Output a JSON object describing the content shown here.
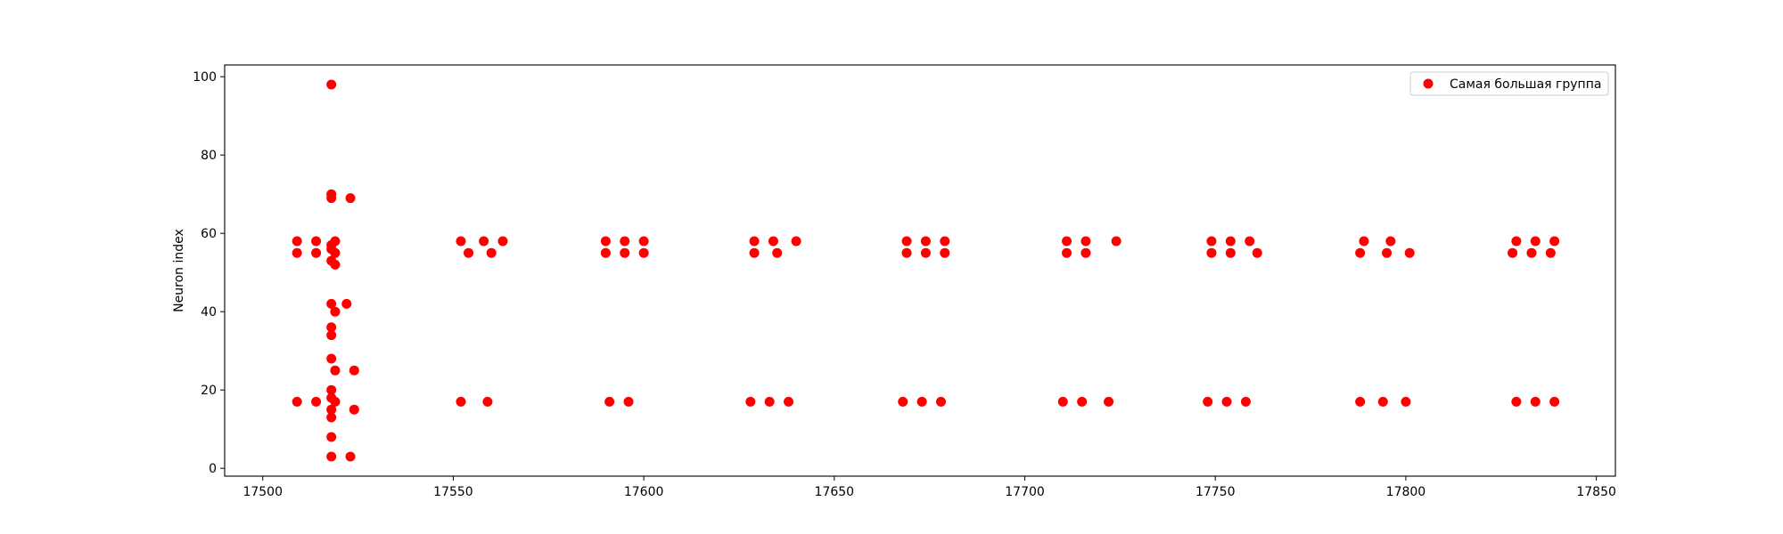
{
  "chart_data": {
    "type": "scatter",
    "title": "",
    "xlabel": "",
    "ylabel": "Neuron index",
    "xlim": [
      17490,
      17855
    ],
    "ylim": [
      -2,
      103
    ],
    "xticks": [
      17500,
      17550,
      17600,
      17650,
      17700,
      17750,
      17800,
      17850
    ],
    "yticks": [
      0,
      20,
      40,
      60,
      80,
      100
    ],
    "grid": false,
    "legend": {
      "position": "top-right"
    },
    "series": [
      {
        "name": "Самая большая группа",
        "color": "#ff0000",
        "marker": "circle",
        "points": [
          [
            17509,
            58
          ],
          [
            17509,
            55
          ],
          [
            17509,
            17
          ],
          [
            17514,
            58
          ],
          [
            17514,
            55
          ],
          [
            17514,
            17
          ],
          [
            17518,
            98
          ],
          [
            17518,
            70
          ],
          [
            17518,
            69
          ],
          [
            17519,
            58
          ],
          [
            17518,
            57
          ],
          [
            17518,
            56
          ],
          [
            17519,
            55
          ],
          [
            17518,
            53
          ],
          [
            17519,
            52
          ],
          [
            17518,
            42
          ],
          [
            17519,
            40
          ],
          [
            17518,
            36
          ],
          [
            17518,
            34
          ],
          [
            17518,
            28
          ],
          [
            17519,
            25
          ],
          [
            17518,
            20
          ],
          [
            17518,
            18
          ],
          [
            17519,
            17
          ],
          [
            17518,
            15
          ],
          [
            17518,
            13
          ],
          [
            17518,
            8
          ],
          [
            17518,
            3
          ],
          [
            17523,
            69
          ],
          [
            17522,
            42
          ],
          [
            17524,
            25
          ],
          [
            17524,
            15
          ],
          [
            17523,
            3
          ],
          [
            17552,
            58
          ],
          [
            17554,
            55
          ],
          [
            17552,
            17
          ],
          [
            17558,
            58
          ],
          [
            17559,
            17
          ],
          [
            17560,
            55
          ],
          [
            17563,
            58
          ],
          [
            17590,
            58
          ],
          [
            17590,
            55
          ],
          [
            17591,
            17
          ],
          [
            17595,
            58
          ],
          [
            17595,
            55
          ],
          [
            17596,
            17
          ],
          [
            17600,
            58
          ],
          [
            17600,
            55
          ],
          [
            17628,
            17
          ],
          [
            17629,
            58
          ],
          [
            17629,
            55
          ],
          [
            17634,
            58
          ],
          [
            17633,
            17
          ],
          [
            17635,
            55
          ],
          [
            17638,
            17
          ],
          [
            17640,
            58
          ],
          [
            17668,
            17
          ],
          [
            17669,
            58
          ],
          [
            17669,
            55
          ],
          [
            17673,
            17
          ],
          [
            17674,
            58
          ],
          [
            17674,
            55
          ],
          [
            17678,
            17
          ],
          [
            17679,
            58
          ],
          [
            17679,
            55
          ],
          [
            17710,
            17
          ],
          [
            17711,
            58
          ],
          [
            17711,
            55
          ],
          [
            17715,
            17
          ],
          [
            17716,
            58
          ],
          [
            17716,
            55
          ],
          [
            17722,
            17
          ],
          [
            17724,
            58
          ],
          [
            17748,
            17
          ],
          [
            17749,
            58
          ],
          [
            17749,
            55
          ],
          [
            17753,
            17
          ],
          [
            17754,
            58
          ],
          [
            17754,
            55
          ],
          [
            17758,
            17
          ],
          [
            17759,
            58
          ],
          [
            17761,
            55
          ],
          [
            17788,
            17
          ],
          [
            17789,
            58
          ],
          [
            17788,
            55
          ],
          [
            17794,
            17
          ],
          [
            17796,
            58
          ],
          [
            17795,
            55
          ],
          [
            17800,
            17
          ],
          [
            17801,
            55
          ],
          [
            17828,
            55
          ],
          [
            17829,
            58
          ],
          [
            17829,
            17
          ],
          [
            17833,
            55
          ],
          [
            17834,
            58
          ],
          [
            17834,
            17
          ],
          [
            17838,
            55
          ],
          [
            17839,
            58
          ],
          [
            17839,
            17
          ]
        ]
      }
    ]
  }
}
